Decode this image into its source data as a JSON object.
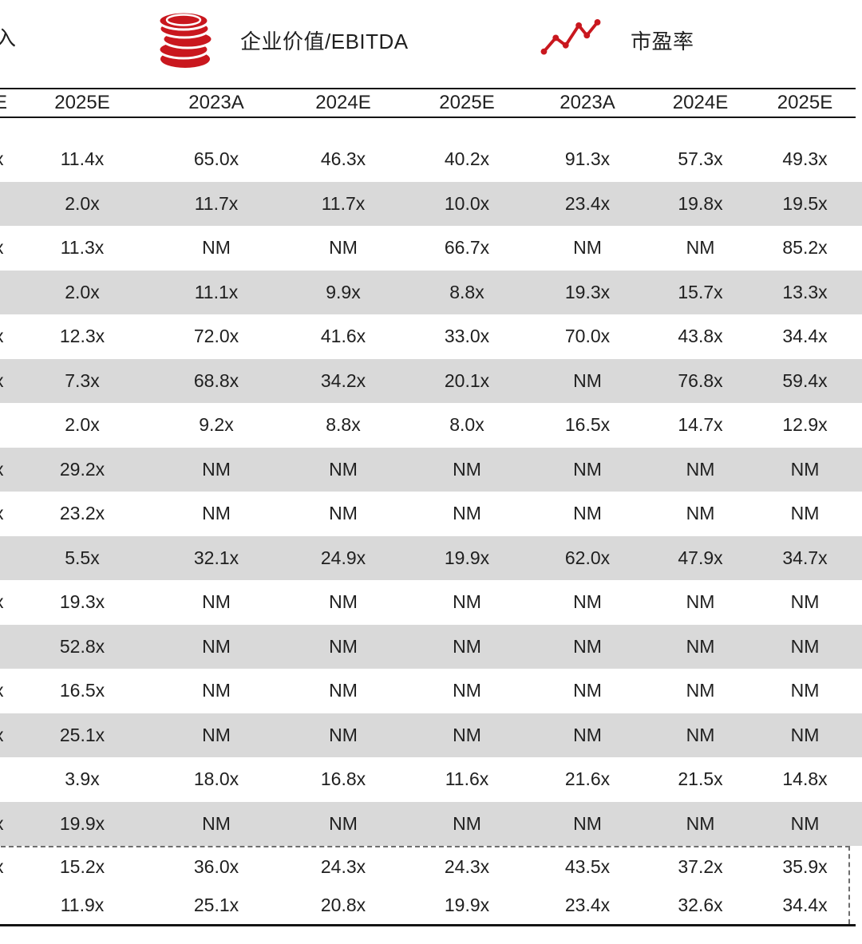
{
  "colors": {
    "accent_red": "#C9171E",
    "row_shade": "#D9D9D9",
    "text": "#1F1F1F"
  },
  "legend": {
    "partial_label": "入",
    "items": [
      {
        "icon": "coins-icon",
        "label": "企业价值/EBITDA"
      },
      {
        "icon": "line-chart-icon",
        "label": "市盈率"
      }
    ]
  },
  "table": {
    "header": {
      "partial_first": "E",
      "columns": [
        "2025E",
        "2023A",
        "2024E",
        "2025E",
        "2023A",
        "2024E",
        "2025E"
      ]
    },
    "rows": [
      {
        "left_partial": "x",
        "values": [
          "11.4x",
          "65.0x",
          "46.3x",
          "40.2x",
          "91.3x",
          "57.3x",
          "49.3x"
        ]
      },
      {
        "left_partial": "",
        "values": [
          "2.0x",
          "11.7x",
          "11.7x",
          "10.0x",
          "23.4x",
          "19.8x",
          "19.5x"
        ]
      },
      {
        "left_partial": "x",
        "values": [
          "11.3x",
          "NM",
          "NM",
          "66.7x",
          "NM",
          "NM",
          "85.2x"
        ]
      },
      {
        "left_partial": "",
        "values": [
          "2.0x",
          "11.1x",
          "9.9x",
          "8.8x",
          "19.3x",
          "15.7x",
          "13.3x"
        ]
      },
      {
        "left_partial": "x",
        "values": [
          "12.3x",
          "72.0x",
          "41.6x",
          "33.0x",
          "70.0x",
          "43.8x",
          "34.4x"
        ]
      },
      {
        "left_partial": "x",
        "values": [
          "7.3x",
          "68.8x",
          "34.2x",
          "20.1x",
          "NM",
          "76.8x",
          "59.4x"
        ]
      },
      {
        "left_partial": "",
        "values": [
          "2.0x",
          "9.2x",
          "8.8x",
          "8.0x",
          "16.5x",
          "14.7x",
          "12.9x"
        ]
      },
      {
        "left_partial": "x",
        "values": [
          "29.2x",
          "NM",
          "NM",
          "NM",
          "NM",
          "NM",
          "NM"
        ]
      },
      {
        "left_partial": "x",
        "values": [
          "23.2x",
          "NM",
          "NM",
          "NM",
          "NM",
          "NM",
          "NM"
        ]
      },
      {
        "left_partial": "",
        "values": [
          "5.5x",
          "32.1x",
          "24.9x",
          "19.9x",
          "62.0x",
          "47.9x",
          "34.7x"
        ]
      },
      {
        "left_partial": "x",
        "values": [
          "19.3x",
          "NM",
          "NM",
          "NM",
          "NM",
          "NM",
          "NM"
        ]
      },
      {
        "left_partial": "",
        "values": [
          "52.8x",
          "NM",
          "NM",
          "NM",
          "NM",
          "NM",
          "NM"
        ]
      },
      {
        "left_partial": "x",
        "values": [
          "16.5x",
          "NM",
          "NM",
          "NM",
          "NM",
          "NM",
          "NM"
        ]
      },
      {
        "left_partial": "x",
        "values": [
          "25.1x",
          "NM",
          "NM",
          "NM",
          "NM",
          "NM",
          "NM"
        ]
      },
      {
        "left_partial": "",
        "values": [
          "3.9x",
          "18.0x",
          "16.8x",
          "11.6x",
          "21.6x",
          "21.5x",
          "14.8x"
        ]
      },
      {
        "left_partial": "x",
        "values": [
          "19.9x",
          "NM",
          "NM",
          "NM",
          "NM",
          "NM",
          "NM"
        ]
      }
    ],
    "summary_rows": [
      {
        "left_partial": "x",
        "values": [
          "15.2x",
          "36.0x",
          "24.3x",
          "24.3x",
          "43.5x",
          "37.2x",
          "35.9x"
        ]
      },
      {
        "left_partial": "",
        "values": [
          "11.9x",
          "25.1x",
          "20.8x",
          "19.9x",
          "23.4x",
          "32.6x",
          "34.4x"
        ]
      }
    ]
  }
}
